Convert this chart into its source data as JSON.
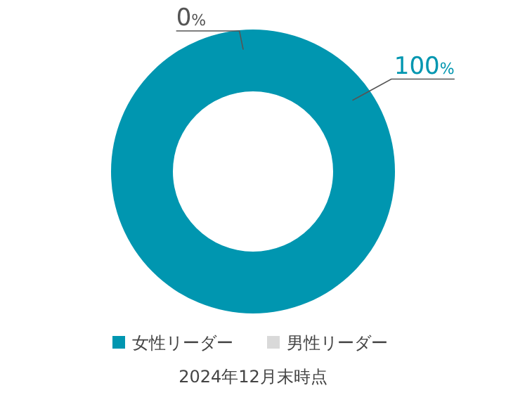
{
  "chart_data": {
    "type": "donut",
    "categories": [
      "女性リーダー",
      "男性リーダー"
    ],
    "values": [
      100,
      0
    ],
    "colors": [
      "#0096b0",
      "#d9d9d9"
    ],
    "value_labels": [
      "100%",
      "0%"
    ],
    "legend": "bottom",
    "annotations": [
      "2024年12月末時点"
    ]
  }
}
